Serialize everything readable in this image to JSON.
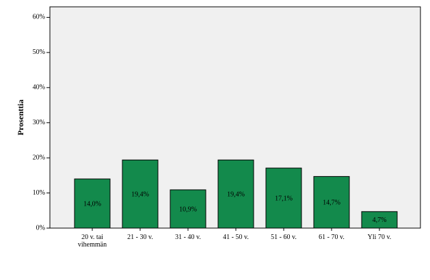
{
  "chart_data": {
    "type": "bar",
    "y_label": "Prosenttia",
    "categories": [
      "20 v. tai vihemmän",
      "21 - 30 v.",
      "31 - 40 v.",
      "41 - 50 v.",
      "51 - 60 v.",
      "61 - 70 v.",
      "Yli 70 v."
    ],
    "values": [
      14.0,
      19.4,
      10.9,
      19.4,
      17.1,
      14.7,
      4.7
    ],
    "value_labels": [
      "14,0%",
      "19,4%",
      "10,9%",
      "19,4%",
      "17,1%",
      "14,7%",
      "4,7%"
    ],
    "color": "#138a4c",
    "ylim": [
      0,
      63
    ],
    "yticks": [
      {
        "value": 0,
        "label": "0%"
      },
      {
        "value": 10,
        "label": "10%"
      },
      {
        "value": 20,
        "label": "20%"
      },
      {
        "value": 30,
        "label": "30%"
      },
      {
        "value": 40,
        "label": "40%"
      },
      {
        "value": 50,
        "label": "50%"
      },
      {
        "value": 60,
        "label": "60%"
      }
    ],
    "grid": false
  }
}
